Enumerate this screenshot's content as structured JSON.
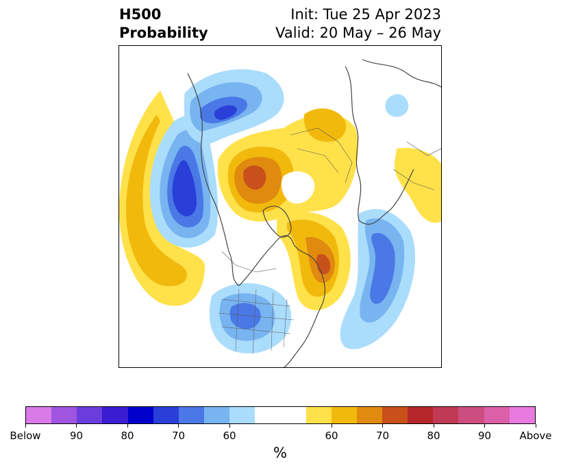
{
  "title": {
    "left_line1": "H500",
    "left_line2": "Probability",
    "right_line1": "Init: Tue 25 Apr 2023",
    "right_line2": "Valid: 20 May – 26 May"
  },
  "map": {
    "projection": "north-polar-stereographic",
    "layers": [
      "coastlines-icon",
      "country-borders-icon",
      "us-state-borders-icon"
    ],
    "below_anomaly_colors": [
      "#aadcfc",
      "#78b4f0",
      "#4a78e6",
      "#2a3fd8"
    ],
    "above_anomaly_colors": [
      "#ffe14a",
      "#f2b90d",
      "#e08a10",
      "#c8501a"
    ]
  },
  "colorbar": {
    "colors": [
      "#d97ae8",
      "#a055e0",
      "#6a3ddc",
      "#3a1cd2",
      "#0000cc",
      "#2a3fd8",
      "#4a78e6",
      "#78b4f0",
      "#aadcfc",
      "#ffffff",
      "#ffe14a",
      "#f2b90d",
      "#e08a10",
      "#c8501a",
      "#b4262a",
      "#c03a55",
      "#cc4e80",
      "#dc60a8",
      "#e87ae0"
    ],
    "widths": [
      1,
      1,
      1,
      1,
      1,
      1,
      1,
      1,
      1,
      2,
      1,
      1,
      1,
      1,
      1,
      1,
      1,
      1,
      1
    ],
    "ticks": [
      "Below",
      "90",
      "80",
      "70",
      "60",
      "60",
      "70",
      "80",
      "90",
      "Above"
    ],
    "label": "%"
  }
}
